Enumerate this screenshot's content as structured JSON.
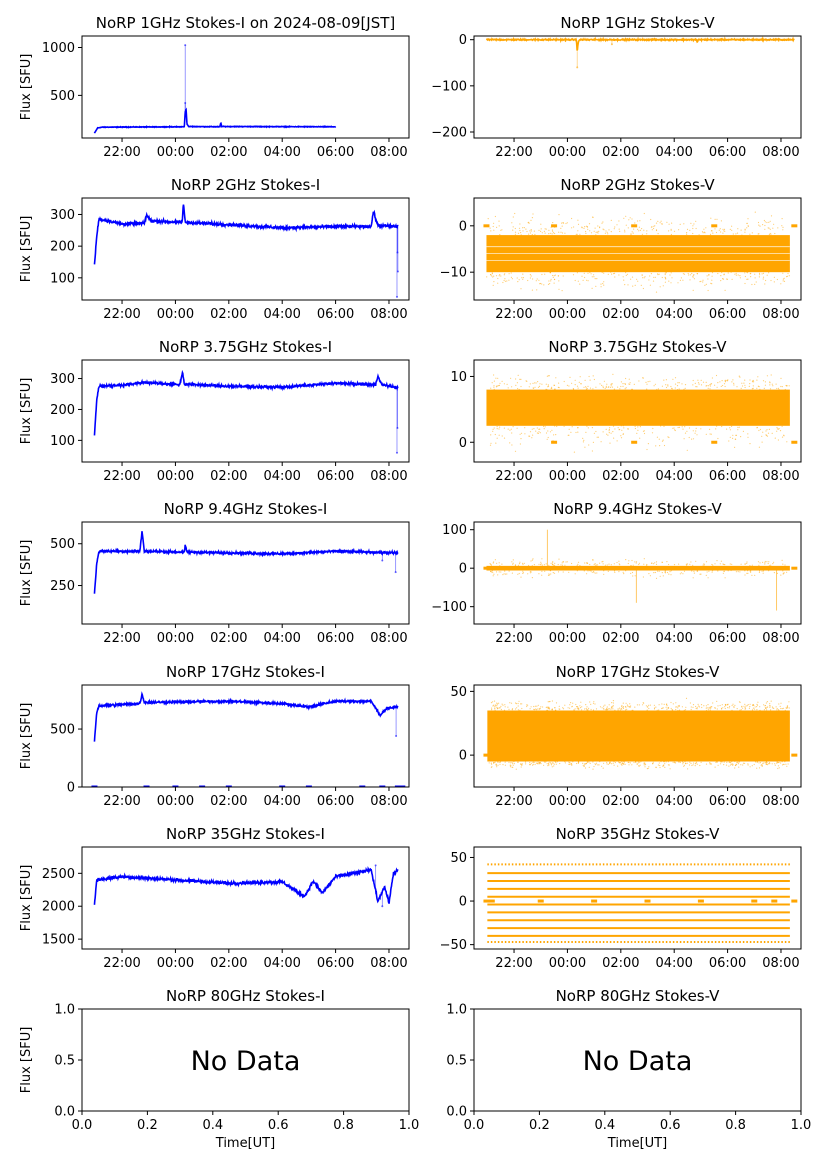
{
  "chart_data": [
    {
      "type": "line",
      "title": "NoRP 1GHz Stokes-I on 2024-08-09[JST]",
      "ylabel": "Flux [SFU]",
      "xlabel": "",
      "x_ticks": [
        "22:00",
        "00:00",
        "02:00",
        "04:00",
        "06:00",
        "08:00"
      ],
      "y_ticks": [
        500,
        1000
      ],
      "ylim": [
        55,
        1120
      ],
      "series": [
        {
          "color": "#0000ff",
          "start": "20:58",
          "end": "06:00",
          "base": 170,
          "noise": 4,
          "points": [
            [
              "20:58",
              105
            ],
            [
              "21:05",
              160
            ],
            [
              "21:15",
              168
            ],
            [
              "00:20",
              172
            ],
            [
              "00:22",
              330
            ],
            [
              "00:24",
              350
            ],
            [
              "00:26",
              200
            ],
            [
              "00:30",
              175
            ],
            [
              "01:40",
              172
            ],
            [
              "01:42",
              215
            ],
            [
              "01:44",
              175
            ],
            [
              "06:00",
              172
            ]
          ],
          "spikes": [
            [
              "00:22",
              1025
            ],
            [
              "00:22",
              420
            ]
          ]
        }
      ]
    },
    {
      "type": "line",
      "title": "NoRP 1GHz Stokes-V",
      "ylabel": "",
      "xlabel": "",
      "x_ticks": [
        "22:00",
        "00:00",
        "02:00",
        "04:00",
        "06:00",
        "08:00"
      ],
      "y_ticks": [
        0,
        -100,
        -200
      ],
      "ylim": [
        -213,
        8
      ],
      "series": [
        {
          "color": "#ffa500",
          "start": "20:58",
          "end": "08:30",
          "base": 0,
          "noise": 2,
          "points": [
            [
              "20:58",
              0
            ],
            [
              "00:20",
              0
            ],
            [
              "00:22",
              -25
            ],
            [
              "00:24",
              -8
            ],
            [
              "00:27",
              0
            ],
            [
              "04:50",
              0
            ],
            [
              "04:52",
              -6
            ],
            [
              "04:54",
              0
            ],
            [
              "08:30",
              0
            ]
          ],
          "spikes": [
            [
              "00:22",
              -60
            ],
            [
              "01:40",
              -10
            ]
          ]
        }
      ]
    },
    {
      "type": "line",
      "title": "NoRP 2GHz Stokes-I",
      "ylabel": "Flux [SFU]",
      "xlabel": "",
      "x_ticks": [
        "22:00",
        "00:00",
        "02:00",
        "04:00",
        "06:00",
        "08:00"
      ],
      "y_ticks": [
        100,
        200,
        300
      ],
      "ylim": [
        30,
        352
      ],
      "series": [
        {
          "color": "#0000ff",
          "start": "20:58",
          "end": "08:20",
          "base": 265,
          "noise": 7,
          "points": [
            [
              "20:58",
              140
            ],
            [
              "21:03",
              230
            ],
            [
              "21:08",
              285
            ],
            [
              "21:30",
              280
            ],
            [
              "22:00",
              270
            ],
            [
              "22:50",
              272
            ],
            [
              "22:55",
              298
            ],
            [
              "23:05",
              280
            ],
            [
              "00:15",
              275
            ],
            [
              "00:18",
              335
            ],
            [
              "00:22",
              275
            ],
            [
              "02:00",
              268
            ],
            [
              "04:00",
              258
            ],
            [
              "06:00",
              262
            ],
            [
              "07:20",
              262
            ],
            [
              "07:25",
              310
            ],
            [
              "07:35",
              265
            ],
            [
              "08:20",
              262
            ]
          ],
          "spikes": [
            [
              "08:18",
              40
            ],
            [
              "08:20",
              120
            ],
            [
              "08:19",
              180
            ]
          ]
        }
      ]
    },
    {
      "type": "scatter",
      "title": "NoRP 2GHz Stokes-V",
      "ylabel": "",
      "xlabel": "",
      "x_ticks": [
        "22:00",
        "00:00",
        "02:00",
        "04:00",
        "06:00",
        "08:00"
      ],
      "y_ticks": [
        0,
        -10
      ],
      "ylim": [
        -16,
        6
      ],
      "series": [
        {
          "color": "#ffa500",
          "start": "20:58",
          "end": "08:20",
          "band": [
            -10,
            -2
          ],
          "scatter": [
            -15,
            4
          ],
          "density": 520,
          "lines": [
            -4.5,
            -6,
            -7.5
          ],
          "flags": [
            [
              "20:58",
              0
            ],
            [
              "23:30",
              0
            ],
            [
              "02:30",
              0
            ],
            [
              "05:30",
              0
            ],
            [
              "08:30",
              0
            ]
          ]
        }
      ]
    },
    {
      "type": "line",
      "title": "NoRP 3.75GHz Stokes-I",
      "ylabel": "Flux [SFU]",
      "xlabel": "",
      "x_ticks": [
        "22:00",
        "00:00",
        "02:00",
        "04:00",
        "06:00",
        "08:00"
      ],
      "y_ticks": [
        100,
        200,
        300
      ],
      "ylim": [
        30,
        360
      ],
      "series": [
        {
          "color": "#0000ff",
          "start": "20:58",
          "end": "08:20",
          "base": 278,
          "noise": 6,
          "points": [
            [
              "20:58",
              115
            ],
            [
              "21:03",
              230
            ],
            [
              "21:08",
              275
            ],
            [
              "22:00",
              278
            ],
            [
              "22:50",
              288
            ],
            [
              "00:10",
              280
            ],
            [
              "00:16",
              322
            ],
            [
              "00:20",
              282
            ],
            [
              "02:00",
              275
            ],
            [
              "04:00",
              272
            ],
            [
              "06:00",
              285
            ],
            [
              "07:30",
              280
            ],
            [
              "07:35",
              308
            ],
            [
              "07:45",
              280
            ],
            [
              "08:20",
              270
            ]
          ],
          "spikes": [
            [
              "08:18",
              60
            ],
            [
              "08:19",
              140
            ]
          ]
        }
      ]
    },
    {
      "type": "scatter",
      "title": "NoRP 3.75GHz Stokes-V",
      "ylabel": "",
      "xlabel": "",
      "x_ticks": [
        "22:00",
        "00:00",
        "02:00",
        "04:00",
        "06:00",
        "08:00"
      ],
      "y_ticks": [
        0,
        10
      ],
      "ylim": [
        -3,
        12.5
      ],
      "series": [
        {
          "color": "#ffa500",
          "start": "20:58",
          "end": "08:20",
          "band": [
            2.5,
            8
          ],
          "scatter": [
            -2,
            11
          ],
          "density": 480,
          "lines": [],
          "flags": [
            [
              "23:30",
              0
            ],
            [
              "02:30",
              0
            ],
            [
              "05:30",
              0
            ],
            [
              "08:30",
              0
            ]
          ]
        }
      ]
    },
    {
      "type": "line",
      "title": "NoRP 9.4GHz Stokes-I",
      "ylabel": "Flux [SFU]",
      "xlabel": "",
      "x_ticks": [
        "22:00",
        "00:00",
        "02:00",
        "04:00",
        "06:00",
        "08:00"
      ],
      "y_ticks": [
        250,
        500
      ],
      "ylim": [
        20,
        630
      ],
      "series": [
        {
          "color": "#0000ff",
          "start": "20:58",
          "end": "08:20",
          "base": 450,
          "noise": 10,
          "points": [
            [
              "20:58",
              200
            ],
            [
              "21:03",
              380
            ],
            [
              "21:08",
              455
            ],
            [
              "22:40",
              455
            ],
            [
              "22:45",
              575
            ],
            [
              "22:50",
              455
            ],
            [
              "00:20",
              450
            ],
            [
              "00:22",
              490
            ],
            [
              "00:26",
              450
            ],
            [
              "04:00",
              440
            ],
            [
              "06:00",
              455
            ],
            [
              "08:20",
              445
            ]
          ],
          "spikes": [
            [
              "08:15",
              330
            ],
            [
              "07:45",
              400
            ]
          ]
        }
      ]
    },
    {
      "type": "scatter",
      "title": "NoRP 9.4GHz Stokes-V",
      "ylabel": "",
      "xlabel": "",
      "x_ticks": [
        "22:00",
        "00:00",
        "02:00",
        "04:00",
        "06:00",
        "08:00"
      ],
      "y_ticks": [
        -100,
        0,
        100
      ],
      "ylim": [
        -145,
        120
      ],
      "series": [
        {
          "color": "#ffa500",
          "start": "20:58",
          "end": "08:20",
          "band": [
            -6,
            6
          ],
          "scatter": [
            -30,
            30
          ],
          "density": 300,
          "lines": [],
          "flags": [
            [
              "20:58",
              0
            ],
            [
              "08:30",
              0
            ]
          ],
          "bursts": [
            [
              "23:15",
              100
            ],
            [
              "02:35",
              -90
            ],
            [
              "07:50",
              -110
            ]
          ]
        }
      ]
    },
    {
      "type": "line",
      "title": "NoRP 17GHz Stokes-I",
      "ylabel": "Flux [SFU]",
      "xlabel": "",
      "x_ticks": [
        "22:00",
        "00:00",
        "02:00",
        "04:00",
        "06:00",
        "08:00"
      ],
      "y_ticks": [
        0,
        500
      ],
      "ylim": [
        0,
        880
      ],
      "series": [
        {
          "color": "#0000ff",
          "start": "20:58",
          "end": "08:20",
          "base": 720,
          "noise": 14,
          "points": [
            [
              "20:58",
              400
            ],
            [
              "21:03",
              640
            ],
            [
              "21:08",
              700
            ],
            [
              "22:40",
              720
            ],
            [
              "22:45",
              800
            ],
            [
              "22:50",
              730
            ],
            [
              "02:00",
              740
            ],
            [
              "04:00",
              720
            ],
            [
              "05:00",
              690
            ],
            [
              "06:00",
              740
            ],
            [
              "07:20",
              740
            ],
            [
              "07:40",
              620
            ],
            [
              "07:55",
              680
            ],
            [
              "08:20",
              690
            ]
          ],
          "spikes": [
            [
              "08:16",
              440
            ]
          ],
          "zeros": [
            "20:58",
            "22:55",
            "00:00",
            "01:00",
            "02:00",
            "04:00",
            "05:00",
            "07:00",
            "07:45",
            "08:20",
            "08:30"
          ]
        }
      ]
    },
    {
      "type": "scatter",
      "title": "NoRP 17GHz Stokes-V",
      "ylabel": "",
      "xlabel": "",
      "x_ticks": [
        "22:00",
        "00:00",
        "02:00",
        "04:00",
        "06:00",
        "08:00"
      ],
      "y_ticks": [
        0,
        50
      ],
      "ylim": [
        -25,
        55
      ],
      "series": [
        {
          "color": "#ffa500",
          "start": "21:00",
          "end": "08:20",
          "band": [
            -5,
            35
          ],
          "scatter": [
            -12,
            45
          ],
          "density": 700,
          "lines": [],
          "flags": [
            [
              "20:58",
              0
            ],
            [
              "08:30",
              0
            ]
          ]
        }
      ]
    },
    {
      "type": "line",
      "title": "NoRP 35GHz Stokes-I",
      "ylabel": "Flux [SFU]",
      "xlabel": "",
      "x_ticks": [
        "22:00",
        "00:00",
        "02:00",
        "04:00",
        "06:00",
        "08:00"
      ],
      "y_ticks": [
        1500,
        2000,
        2500
      ],
      "ylim": [
        1350,
        2900
      ],
      "series": [
        {
          "color": "#0000ff",
          "start": "20:58",
          "end": "08:20",
          "base": 2400,
          "noise": 35,
          "points": [
            [
              "20:58",
              2020
            ],
            [
              "21:03",
              2400
            ],
            [
              "22:00",
              2450
            ],
            [
              "00:00",
              2400
            ],
            [
              "02:00",
              2350
            ],
            [
              "04:00",
              2370
            ],
            [
              "04:50",
              2150
            ],
            [
              "05:10",
              2380
            ],
            [
              "05:30",
              2200
            ],
            [
              "06:00",
              2450
            ],
            [
              "07:20",
              2550
            ],
            [
              "07:35",
              2080
            ],
            [
              "07:50",
              2300
            ],
            [
              "08:00",
              2050
            ],
            [
              "08:10",
              2500
            ],
            [
              "08:20",
              2550
            ]
          ],
          "spikes": [
            [
              "07:30",
              2620
            ],
            [
              "07:45",
              2000
            ]
          ]
        }
      ]
    },
    {
      "type": "scatter",
      "title": "NoRP 35GHz Stokes-V",
      "ylabel": "",
      "xlabel": "",
      "x_ticks": [
        "22:00",
        "00:00",
        "02:00",
        "04:00",
        "06:00",
        "08:00"
      ],
      "y_ticks": [
        -50,
        0,
        50
      ],
      "ylim": [
        -55,
        62
      ],
      "series": [
        {
          "color": "#ffa500",
          "start": "21:00",
          "end": "08:20",
          "band": [
            0,
            0
          ],
          "scatter": [
            0,
            0
          ],
          "density": 0,
          "lines": [
            42,
            32,
            23,
            14,
            5,
            -4,
            -13,
            -22,
            -31,
            -40,
            -47
          ],
          "flags": [
            [
              "20:58",
              0
            ],
            [
              "21:10",
              0
            ],
            [
              "23:00",
              0
            ],
            [
              "01:00",
              0
            ],
            [
              "03:00",
              0
            ],
            [
              "05:00",
              0
            ],
            [
              "07:00",
              0
            ],
            [
              "07:45",
              0
            ],
            [
              "08:30",
              0
            ]
          ]
        }
      ]
    },
    {
      "type": "line",
      "title": "NoRP 80GHz Stokes-I",
      "ylabel": "Flux [SFU]",
      "xlabel": "Time[UT]",
      "x_ticks": [
        "0.0",
        "0.2",
        "0.4",
        "0.6",
        "0.8",
        "1.0"
      ],
      "y_ticks": [
        "0.0",
        "0.5",
        "1.0"
      ],
      "ylim": [
        0,
        1
      ],
      "annotation": "No Data",
      "series": []
    },
    {
      "type": "line",
      "title": "NoRP 80GHz Stokes-V",
      "ylabel": "",
      "xlabel": "Time[UT]",
      "x_ticks": [
        "0.0",
        "0.2",
        "0.4",
        "0.6",
        "0.8",
        "1.0"
      ],
      "y_ticks": [
        "0.0",
        "0.5",
        "1.0"
      ],
      "ylim": [
        0,
        1
      ],
      "annotation": "No Data",
      "series": []
    }
  ]
}
